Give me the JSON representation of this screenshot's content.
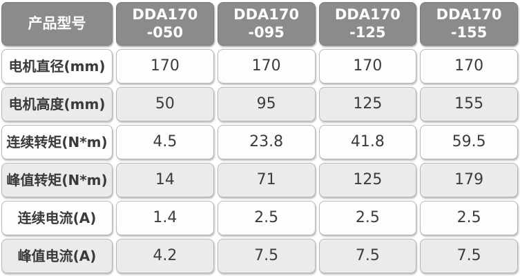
{
  "chart_data": {
    "type": "table",
    "title": "",
    "columns": [
      "产品型号",
      "DDA170-050",
      "DDA170-095",
      "DDA170-125",
      "DDA170-155"
    ],
    "rows": [
      [
        "电机直径(mm)",
        "170",
        "170",
        "170",
        "170"
      ],
      [
        "电机高度(mm)",
        "50",
        "95",
        "125",
        "155"
      ],
      [
        "连续转矩(N*m)",
        "4.5",
        "23.8",
        "41.8",
        "59.5"
      ],
      [
        "峰值转矩(N*m)",
        "14",
        "71",
        "125",
        "179"
      ],
      [
        "连续电流(A)",
        "1.4",
        "2.5",
        "2.5",
        "2.5"
      ],
      [
        "峰值电流(A)",
        "4.2",
        "7.5",
        "7.5",
        "7.5"
      ]
    ]
  },
  "header_display": [
    {
      "line1": "DDA170",
      "line2": "-050"
    },
    {
      "line1": "DDA170",
      "line2": "-095"
    },
    {
      "line1": "DDA170",
      "line2": "-125"
    },
    {
      "line1": "DDA170",
      "line2": "-155"
    }
  ],
  "colors": {
    "header_bg": "#8b8b89",
    "header_text": "#fdfdfd",
    "row_bg": "#fdfdfd",
    "row_alt_bg": "#ebebea",
    "body_text": "#3c3c3c"
  }
}
